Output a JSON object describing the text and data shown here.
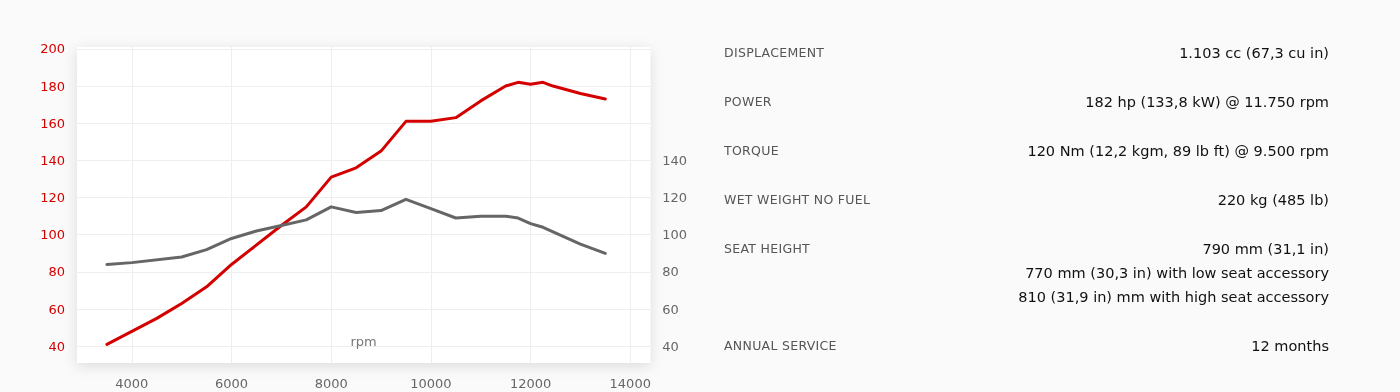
{
  "chart_data": [
    {
      "type": "line",
      "xlabel": "rpm",
      "xlim": [
        2900,
        14400
      ],
      "xticks": [
        4000,
        6000,
        8000,
        10000,
        12000,
        14000
      ],
      "ylim": [
        31,
        201
      ],
      "yticks": [
        40,
        60,
        80,
        100,
        120,
        140,
        160,
        180,
        200
      ],
      "y2lim": [
        31,
        201
      ],
      "y2ticks": [
        40,
        60,
        80,
        100,
        120,
        140
      ],
      "grid": true,
      "marker": "none",
      "line_style": "solid",
      "series": [
        {
          "color": "#d40000",
          "axis": "y",
          "x": [
            3500,
            4500,
            5000,
            5500,
            6000,
            7000,
            7500,
            8000,
            8500,
            9000,
            9500,
            10000,
            10500,
            11000,
            11500,
            11750,
            12000,
            12250,
            12450,
            13000,
            13500
          ],
          "values": [
            41,
            55,
            63,
            72,
            84,
            105,
            115,
            131,
            136,
            145,
            161,
            161,
            163,
            172,
            180,
            182,
            181,
            182,
            180,
            176,
            173
          ]
        },
        {
          "color": "#666666",
          "axis": "y2",
          "x": [
            3500,
            4000,
            5000,
            5500,
            6000,
            6500,
            7000,
            7500,
            8000,
            8500,
            9000,
            9500,
            10000,
            10500,
            11000,
            11500,
            11750,
            12000,
            12250,
            13000,
            13500
          ],
          "values": [
            84,
            85,
            88,
            92,
            98,
            102,
            105,
            108,
            115,
            112,
            113,
            119,
            114,
            109,
            110,
            110,
            109,
            106,
            104,
            95,
            90
          ]
        }
      ]
    },
    {
      "type": "other",
      "annotations": [
        "DISPLACEMENT",
        "1.103 cc (67,3 cu in)",
        "POWER",
        "182 hp (133,8 kW) @ 11.750 rpm",
        "TORQUE",
        "120 Nm (12,2 kgm, 89 lb ft) @ 9.500 rpm",
        "WET WEIGHT NO FUEL",
        "220 kg (485 lb)",
        "SEAT HEIGHT",
        "790 mm (31,1 in)\n770 mm (30,3 in) with low seat accessory\n810 (31,9 in) mm with high seat accessory",
        "ANNUAL SERVICE",
        "12 months"
      ]
    }
  ]
}
